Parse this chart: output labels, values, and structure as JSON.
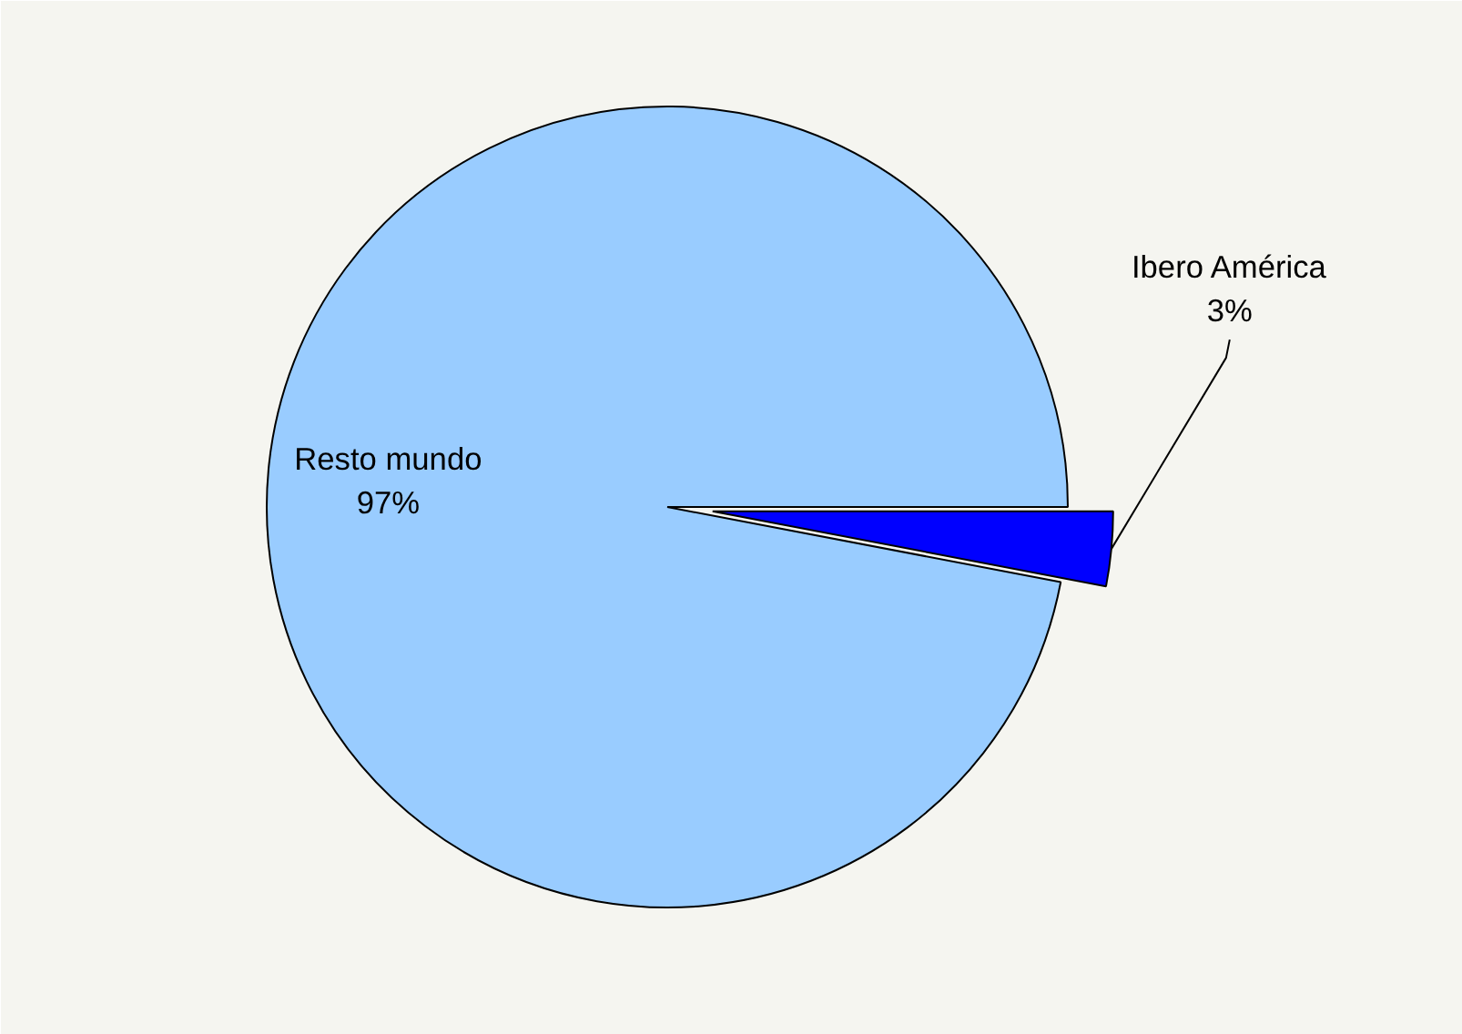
{
  "chart_data": {
    "type": "pie",
    "categories": [
      "Resto mundo",
      "Ibero América"
    ],
    "values": [
      97,
      3
    ],
    "colors": [
      "#99ccff",
      "#0000ff"
    ],
    "value_labels": [
      "97%",
      "3%"
    ]
  }
}
